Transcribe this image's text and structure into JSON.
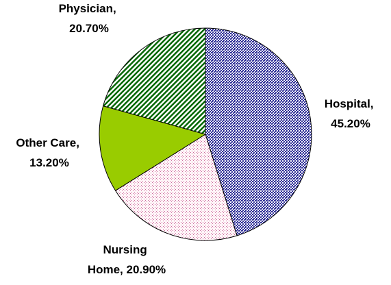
{
  "chart_data": {
    "type": "pie",
    "values": [
      45.2,
      20.9,
      13.2,
      20.7
    ],
    "value_labels": [
      "Hospital, 45.20%",
      "Nursing Home, 20.90%",
      "Other Care, 13.20%",
      "Physician, 20.70%"
    ],
    "colors": [
      "#333399",
      "#cc6699",
      "#99cc00",
      "#006600"
    ]
  }
}
